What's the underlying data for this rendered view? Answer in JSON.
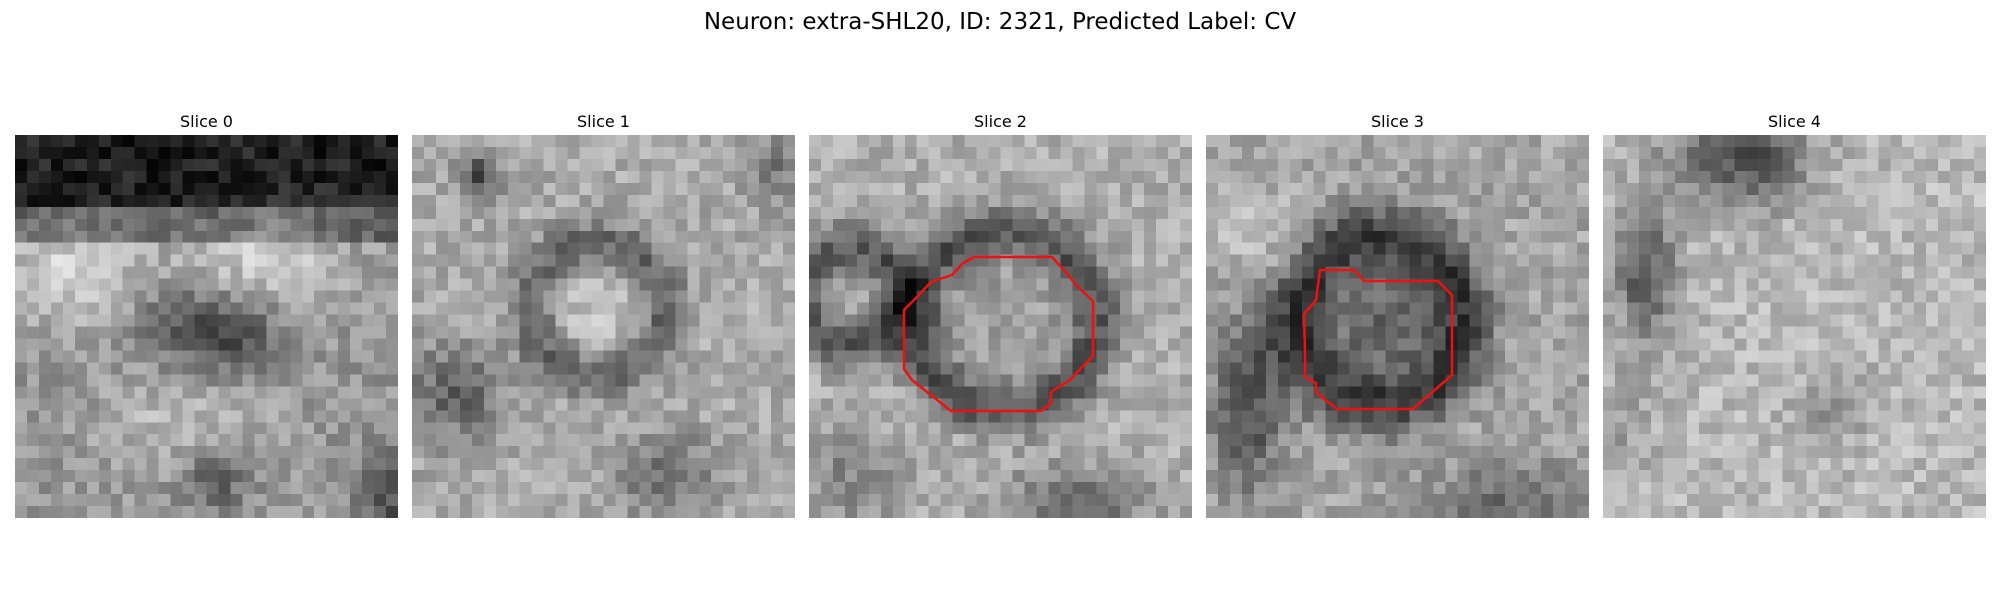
{
  "figure": {
    "title": "Neuron: extra-SHL20, ID: 2321, Predicted Label: CV"
  },
  "contour_color": "#ee1111",
  "slices": [
    {
      "title": "Slice 0"
    },
    {
      "title": "Slice 1"
    },
    {
      "title": "Slice 2"
    },
    {
      "title": "Slice 3"
    },
    {
      "title": "Slice 4"
    }
  ]
}
